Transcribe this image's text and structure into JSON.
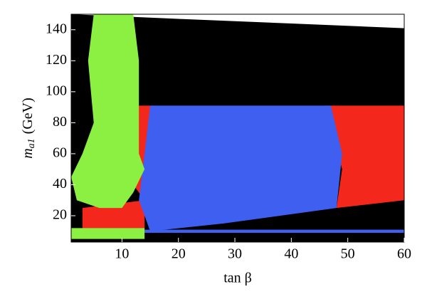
{
  "chart_data": {
    "type": "scatter",
    "xlabel": "tan β",
    "ylabel": {
      "symbol": "m",
      "subscript": "a1",
      "unit": "(GeV)"
    },
    "xlim": [
      1,
      60
    ],
    "ylim": [
      3,
      150
    ],
    "xticks": [
      10,
      20,
      30,
      40,
      50,
      60
    ],
    "yticks": [
      20,
      40,
      60,
      80,
      100,
      120,
      140
    ],
    "series": [
      {
        "color": "#000000",
        "x": [
          1,
          60,
          60,
          40,
          20,
          1
        ],
        "y": [
          3,
          3,
          141,
          144,
          147,
          150
        ]
      },
      {
        "color": "#f4271c",
        "x": [
          46,
          60,
          60,
          48,
          49
        ],
        "y": [
          91,
          91,
          30,
          25,
          50
        ]
      },
      {
        "color": "#f4271c",
        "x": [
          12,
          16,
          15,
          14,
          12
        ],
        "y": [
          91,
          91,
          50,
          30,
          40
        ]
      },
      {
        "color": "#f4271c",
        "x": [
          3,
          14,
          14,
          3
        ],
        "y": [
          6,
          6,
          30,
          25
        ]
      },
      {
        "color": "#3f5ff0",
        "x": [
          15,
          47,
          49,
          48,
          28,
          15,
          13,
          14
        ],
        "y": [
          91,
          91,
          60,
          25,
          15,
          10,
          30,
          60
        ]
      },
      {
        "color": "#3f5ff0",
        "x": [
          14,
          60,
          60,
          14
        ],
        "y": [
          9,
          9,
          11,
          11
        ]
      },
      {
        "color": "#000000",
        "x": [
          14,
          60,
          60,
          14
        ],
        "y": [
          4,
          4,
          9,
          9
        ]
      },
      {
        "color": "#8cf042",
        "x": [
          5,
          12,
          13,
          13,
          14,
          12,
          10,
          6,
          2,
          1,
          3,
          5,
          4
        ],
        "y": [
          150,
          150,
          120,
          60,
          50,
          35,
          25,
          25,
          30,
          45,
          60,
          80,
          120
        ]
      },
      {
        "color": "#8cf042",
        "x": [
          1,
          14,
          14,
          1
        ],
        "y": [
          5,
          5,
          12,
          12
        ]
      }
    ]
  }
}
